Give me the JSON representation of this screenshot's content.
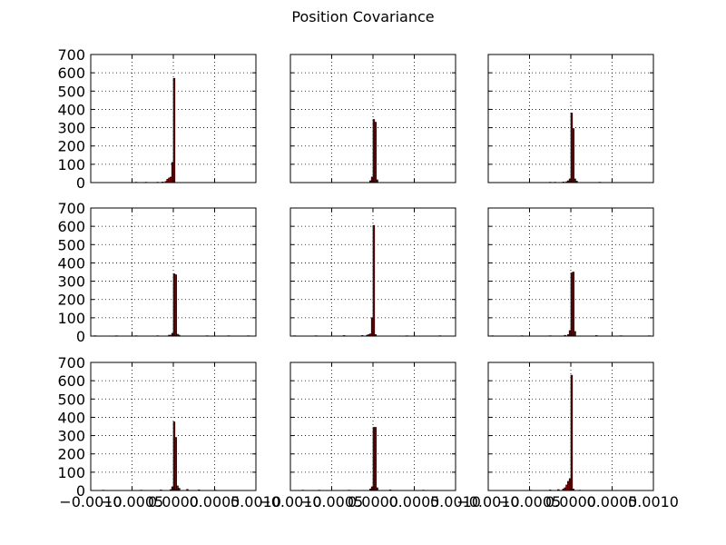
{
  "chart_data": {
    "type": "bar",
    "title": "Position Covariance",
    "layout": "3x3 grid of histograms",
    "shared_y": true,
    "shared_x": true,
    "xlim": [
      -0.001,
      0.001
    ],
    "ylim": [
      0,
      700
    ],
    "yticks": [
      0,
      100,
      200,
      300,
      400,
      500,
      600,
      700
    ],
    "xticks": [
      -0.001,
      -0.0005,
      0.0,
      0.0005,
      0.001
    ],
    "xtick_labels": [
      "−0.0010",
      "−0.0005",
      "0.0000",
      "0.0005",
      "0.0010"
    ],
    "ytick_labels": [
      "0",
      "100",
      "200",
      "300",
      "400",
      "500",
      "600",
      "700"
    ],
    "grid": true,
    "bar_color": "#8b0000",
    "bin_width": 2e-05,
    "subplots": [
      {
        "bins_x": [
          -0.00046,
          -0.00034,
          -0.0002,
          -0.00014,
          -0.0001,
          -8e-05,
          -6e-05,
          -4e-05,
          -2e-05,
          0.0
        ],
        "counts": [
          2,
          2,
          2,
          3,
          6,
          18,
          25,
          30,
          110,
          570
        ]
      },
      {
        "bins_x": [
          -4e-05,
          -2e-05,
          0.0,
          2e-05,
          4e-05
        ],
        "counts": [
          10,
          30,
          345,
          330,
          15
        ]
      },
      {
        "bins_x": [
          -0.00026,
          -0.0002,
          -0.0001,
          -6e-05,
          -4e-05,
          -2e-05,
          0.0,
          2e-05,
          4e-05,
          6e-05,
          0.00034
        ],
        "counts": [
          2,
          2,
          3,
          5,
          10,
          20,
          380,
          295,
          20,
          8,
          2
        ]
      },
      {
        "bins_x": [
          -0.00096,
          -0.0007,
          -0.00046,
          -0.0002,
          -6e-05,
          -4e-05,
          -2e-05,
          0.0,
          2e-05,
          4e-05,
          6e-05,
          0.0004,
          0.00066,
          0.0009
        ],
        "counts": [
          2,
          2,
          2,
          2,
          5,
          5,
          15,
          340,
          335,
          10,
          5,
          2,
          2,
          2
        ]
      },
      {
        "bins_x": [
          -0.00096,
          -0.0007,
          -0.00036,
          -0.00014,
          -8e-05,
          -6e-05,
          -4e-05,
          -2e-05,
          0.0,
          2e-05,
          0.0004,
          0.0008
        ],
        "counts": [
          2,
          2,
          3,
          3,
          5,
          8,
          12,
          100,
          605,
          8,
          2,
          2
        ]
      },
      {
        "bins_x": [
          -0.00096,
          -0.0006,
          -0.00026,
          -8e-05,
          -4e-05,
          -2e-05,
          0.0,
          2e-05,
          4e-05,
          0.0003,
          0.0006,
          0.00094
        ],
        "counts": [
          2,
          2,
          2,
          4,
          8,
          30,
          345,
          350,
          25,
          3,
          2,
          2
        ]
      },
      {
        "bins_x": [
          -0.00086,
          -0.0004,
          -0.00016,
          -4e-05,
          -2e-05,
          0.0,
          2e-05,
          4e-05,
          6e-05,
          0.00016,
          0.0003,
          0.0005
        ],
        "counts": [
          2,
          2,
          3,
          5,
          20,
          375,
          290,
          25,
          12,
          6,
          3,
          2
        ]
      },
      {
        "bins_x": [
          -0.00086,
          -0.00066,
          -0.0003,
          -4e-05,
          -2e-05,
          0.0,
          2e-05,
          4e-05,
          0.0002,
          0.0006
        ],
        "counts": [
          2,
          2,
          2,
          8,
          20,
          345,
          345,
          15,
          3,
          2
        ]
      },
      {
        "bins_x": [
          -0.0005,
          -0.00026,
          -0.00016,
          -0.0001,
          -8e-05,
          -6e-05,
          -4e-05,
          -2e-05,
          0.0,
          2e-05,
          0.0001
        ],
        "counts": [
          2,
          3,
          5,
          8,
          15,
          30,
          50,
          65,
          630,
          8,
          2
        ]
      }
    ]
  }
}
